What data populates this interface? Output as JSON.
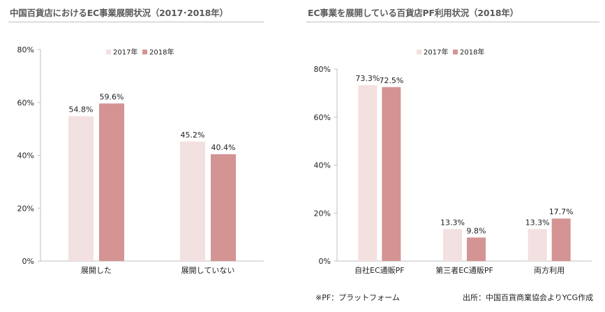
{
  "titles": {
    "left": "中国百貨店におけるEC事業展開状況（2017･2018年）",
    "right": "EC事業を展開している百貨店PF利用状況（2018年）"
  },
  "footnotes": {
    "pf_note": "※PF：プラットフォーム",
    "source": "出所：中国百貨商業協会よりYCG作成"
  },
  "colors": {
    "2017": "#f3e0e0",
    "2018": "#d49494",
    "axis": "#bfbfbf"
  },
  "chart_data": [
    {
      "type": "bar",
      "title": "中国百貨店におけるEC事業展開状況（2017･2018年）",
      "categories": [
        "展開した",
        "展開していない"
      ],
      "series": [
        {
          "name": "2017年",
          "values": [
            54.8,
            45.2
          ]
        },
        {
          "name": "2018年",
          "values": [
            59.6,
            40.4
          ]
        }
      ],
      "value_labels": [
        [
          "54.8%",
          "45.2%"
        ],
        [
          "59.6%",
          "40.4%"
        ]
      ],
      "ylim": [
        0,
        80
      ],
      "yticks": [
        "0%",
        "20%",
        "40%",
        "60%",
        "80%"
      ],
      "legend": "top"
    },
    {
      "type": "bar",
      "title": "EC事業を展開している百貨店PF利用状況（2018年）",
      "categories": [
        "自社EC通販PF",
        "第三者EC通販PF",
        "両方利用"
      ],
      "series": [
        {
          "name": "2017年",
          "values": [
            73.3,
            13.3,
            13.3
          ]
        },
        {
          "name": "2018年",
          "values": [
            72.5,
            9.8,
            17.7
          ]
        }
      ],
      "value_labels": [
        [
          "73.3%",
          "13.3%",
          "13.3%"
        ],
        [
          "72.5%",
          "9.8%",
          "17.7%"
        ]
      ],
      "ylim": [
        0,
        80
      ],
      "yticks": [
        "0%",
        "20%",
        "40%",
        "60%",
        "80%"
      ],
      "legend": "top"
    }
  ]
}
